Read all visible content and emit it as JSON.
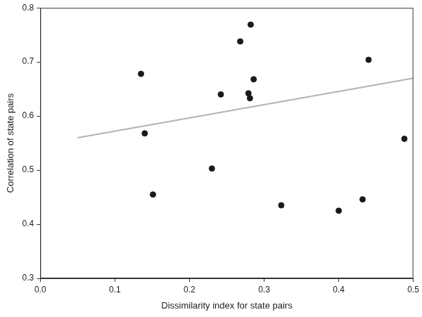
{
  "chart_data": {
    "type": "scatter",
    "x_label": "Dissimilarity index for state pairs",
    "y_label": "Correlation of state pairs",
    "series": [
      {
        "type": "scatter",
        "color": "#1a1a1a",
        "marker": "circle",
        "x": [
          0.135,
          0.14,
          0.151,
          0.23,
          0.242,
          0.268,
          0.279,
          0.281,
          0.282,
          0.286,
          0.323,
          0.4,
          0.432,
          0.44,
          0.488
        ],
        "values": [
          0.678,
          0.568,
          0.455,
          0.503,
          0.64,
          0.738,
          0.642,
          0.633,
          0.769,
          0.668,
          0.435,
          0.425,
          0.446,
          0.704,
          0.558
        ]
      },
      {
        "type": "line",
        "color": "#b3b3b3",
        "line_style": "solid",
        "x": [
          0.05,
          0.5
        ],
        "values": [
          0.56,
          0.67
        ]
      }
    ],
    "xlim": [
      0,
      0.5
    ],
    "xticks": [
      {
        "value": 0,
        "label": "0.0"
      },
      0.1,
      0.2,
      0.3,
      0.4,
      0.5
    ],
    "ylim": [
      0.3,
      0.8
    ],
    "yticks": [
      0.3,
      0.4,
      0.5,
      0.6,
      0.7,
      0.8
    ],
    "grid": false
  }
}
